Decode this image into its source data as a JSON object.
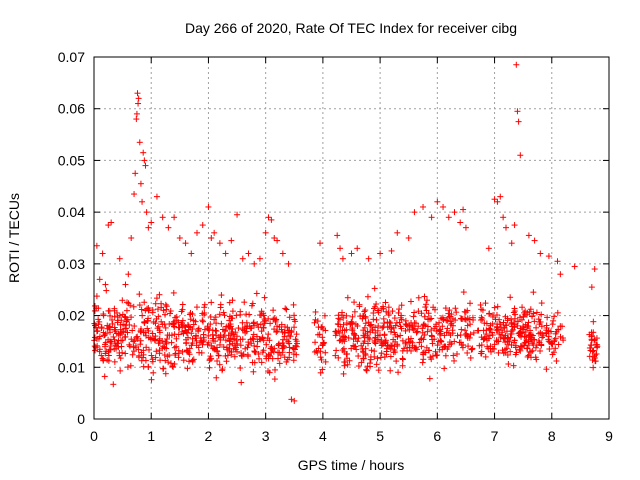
{
  "chart_data": {
    "type": "scatter",
    "title": "Day 266 of 2020, Rate Of TEC Index for receiver cibg",
    "xlabel": "GPS time / hours",
    "ylabel": "ROTI / TECUs",
    "xlim": [
      0,
      9
    ],
    "ylim": [
      0,
      0.07
    ],
    "xticks": [
      0,
      1,
      2,
      3,
      4,
      5,
      6,
      7,
      8,
      9
    ],
    "xtick_labels": [
      "0",
      "1",
      "2",
      "3",
      "4",
      "5",
      "6",
      "7",
      "8",
      "9"
    ],
    "yticks": [
      0,
      0.01,
      0.02,
      0.03,
      0.04,
      0.05,
      0.06,
      0.07
    ],
    "ytick_labels": [
      "0",
      "0.01",
      "0.02",
      "0.03",
      "0.04",
      "0.05",
      "0.06",
      "0.07"
    ],
    "grid": true,
    "marker": "+",
    "color": "#ff0000",
    "series": [
      {
        "name": "ROTI",
        "segments": [
          {
            "x_start": 0.0,
            "x_end": 3.55,
            "y_min": 0.006,
            "y_max": 0.026,
            "density": 650
          },
          {
            "x_start": 3.85,
            "x_end": 4.05,
            "y_min": 0.007,
            "y_max": 0.024,
            "density": 30
          },
          {
            "x_start": 4.2,
            "x_end": 6.65,
            "y_min": 0.007,
            "y_max": 0.026,
            "density": 420
          },
          {
            "x_start": 6.7,
            "x_end": 7.85,
            "y_min": 0.008,
            "y_max": 0.025,
            "density": 220
          },
          {
            "x_start": 7.9,
            "x_end": 8.2,
            "y_min": 0.009,
            "y_max": 0.022,
            "density": 40
          },
          {
            "x_start": 8.65,
            "x_end": 8.8,
            "y_min": 0.009,
            "y_max": 0.02,
            "density": 30
          }
        ],
        "x": [
          0.05,
          0.1,
          0.15,
          0.2,
          0.25,
          0.3,
          0.45,
          0.55,
          0.6,
          0.65,
          0.7,
          0.72,
          0.74,
          0.75,
          0.76,
          0.77,
          0.78,
          0.8,
          0.82,
          0.84,
          0.86,
          0.88,
          0.9,
          0.92,
          0.95,
          1.0,
          1.1,
          1.2,
          1.3,
          1.4,
          1.5,
          1.6,
          1.7,
          1.8,
          1.9,
          2.0,
          2.05,
          2.1,
          2.2,
          2.3,
          2.4,
          2.5,
          2.6,
          2.7,
          2.8,
          2.9,
          3.0,
          3.05,
          3.1,
          3.15,
          3.2,
          3.3,
          3.4,
          3.45,
          3.5,
          3.95,
          4.25,
          4.3,
          4.35,
          4.5,
          4.6,
          4.8,
          5.0,
          5.2,
          5.3,
          5.5,
          5.6,
          5.75,
          5.9,
          6.0,
          6.1,
          6.2,
          6.3,
          6.4,
          6.45,
          6.5,
          6.9,
          7.0,
          7.05,
          7.1,
          7.15,
          7.2,
          7.3,
          7.35,
          7.38,
          7.4,
          7.42,
          7.45,
          7.6,
          7.7,
          7.8,
          7.95,
          8.1,
          8.15,
          8.4,
          8.7,
          8.75
        ],
        "y": [
          0.0335,
          0.027,
          0.032,
          0.026,
          0.0375,
          0.038,
          0.031,
          0.026,
          0.028,
          0.035,
          0.0435,
          0.0475,
          0.058,
          0.059,
          0.063,
          0.061,
          0.062,
          0.0535,
          0.0455,
          0.042,
          0.0515,
          0.05,
          0.049,
          0.04,
          0.037,
          0.038,
          0.043,
          0.039,
          0.037,
          0.039,
          0.035,
          0.034,
          0.032,
          0.036,
          0.0375,
          0.041,
          0.035,
          0.036,
          0.034,
          0.032,
          0.0345,
          0.0395,
          0.031,
          0.032,
          0.03,
          0.031,
          0.036,
          0.039,
          0.0385,
          0.035,
          0.0345,
          0.032,
          0.03,
          0.0038,
          0.0035,
          0.034,
          0.0355,
          0.033,
          0.031,
          0.032,
          0.033,
          0.031,
          0.032,
          0.0325,
          0.036,
          0.035,
          0.04,
          0.041,
          0.039,
          0.042,
          0.041,
          0.039,
          0.04,
          0.038,
          0.0405,
          0.037,
          0.033,
          0.0425,
          0.042,
          0.043,
          0.039,
          0.037,
          0.034,
          0.0375,
          0.0685,
          0.0595,
          0.0575,
          0.051,
          0.0355,
          0.0345,
          0.032,
          0.0315,
          0.0305,
          0.028,
          0.0295,
          0.0255,
          0.029
        ]
      }
    ]
  }
}
